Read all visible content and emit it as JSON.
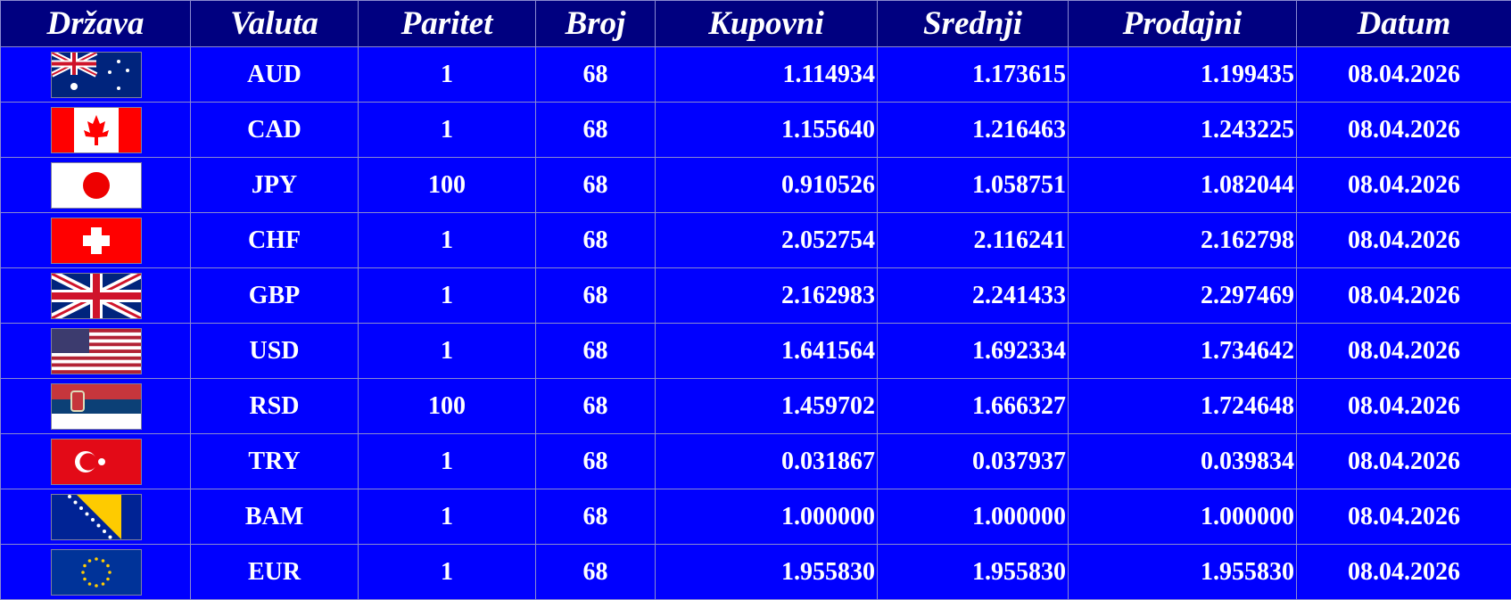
{
  "colors": {
    "header_bg": "#000080",
    "row_bg": "#0000ff",
    "text": "#ffffff"
  },
  "headers": [
    "Država",
    "Valuta",
    "Paritet",
    "Broj",
    "Kupovni",
    "Srednji",
    "Prodajni",
    "Datum"
  ],
  "rows": [
    {
      "flag": "australia-flag",
      "valuta": "AUD",
      "paritet": "1",
      "broj": "68",
      "kupovni": "1.114934",
      "srednji": "1.173615",
      "prodajni": "1.199435",
      "datum": "08.04.2026"
    },
    {
      "flag": "canada-flag",
      "valuta": "CAD",
      "paritet": "1",
      "broj": "68",
      "kupovni": "1.155640",
      "srednji": "1.216463",
      "prodajni": "1.243225",
      "datum": "08.04.2026"
    },
    {
      "flag": "japan-flag",
      "valuta": "JPY",
      "paritet": "100",
      "broj": "68",
      "kupovni": "0.910526",
      "srednji": "1.058751",
      "prodajni": "1.082044",
      "datum": "08.04.2026"
    },
    {
      "flag": "switzerland-flag",
      "valuta": "CHF",
      "paritet": "1",
      "broj": "68",
      "kupovni": "2.052754",
      "srednji": "2.116241",
      "prodajni": "2.162798",
      "datum": "08.04.2026"
    },
    {
      "flag": "uk-flag",
      "valuta": "GBP",
      "paritet": "1",
      "broj": "68",
      "kupovni": "2.162983",
      "srednji": "2.241433",
      "prodajni": "2.297469",
      "datum": "08.04.2026"
    },
    {
      "flag": "usa-flag",
      "valuta": "USD",
      "paritet": "1",
      "broj": "68",
      "kupovni": "1.641564",
      "srednji": "1.692334",
      "prodajni": "1.734642",
      "datum": "08.04.2026"
    },
    {
      "flag": "serbia-flag",
      "valuta": "RSD",
      "paritet": "100",
      "broj": "68",
      "kupovni": "1.459702",
      "srednji": "1.666327",
      "prodajni": "1.724648",
      "datum": "08.04.2026"
    },
    {
      "flag": "turkey-flag",
      "valuta": "TRY",
      "paritet": "1",
      "broj": "68",
      "kupovni": "0.031867",
      "srednji": "0.037937",
      "prodajni": "0.039834",
      "datum": "08.04.2026"
    },
    {
      "flag": "bosnia-flag",
      "valuta": "BAM",
      "paritet": "1",
      "broj": "68",
      "kupovni": "1.000000",
      "srednji": "1.000000",
      "prodajni": "1.000000",
      "datum": "08.04.2026"
    },
    {
      "flag": "eu-flag",
      "valuta": "EUR",
      "paritet": "1",
      "broj": "68",
      "kupovni": "1.955830",
      "srednji": "1.955830",
      "prodajni": "1.955830",
      "datum": "08.04.2026"
    }
  ]
}
